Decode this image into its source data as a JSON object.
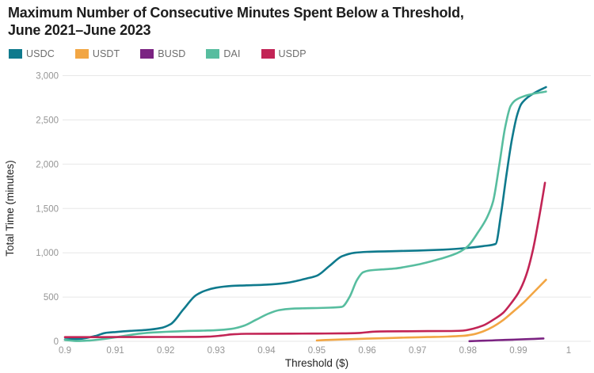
{
  "page": {
    "title_line1": "Maximum Number of Consecutive Minutes Spent Below a Threshold,",
    "title_line2": "June 2021–June 2023"
  },
  "chart_data": {
    "type": "line",
    "title": "Maximum Number of Consecutive Minutes Spent Below a Threshold, June 2021–June 2023",
    "xlabel": "Threshold ($)",
    "ylabel": "Total Time (minutes)",
    "xlim": [
      0.9,
      1.0
    ],
    "ylim": [
      0,
      3000
    ],
    "grid": "horizontal",
    "legend_position": "top-left",
    "x_tick_values": [
      0.9,
      0.91,
      0.92,
      0.93,
      0.94,
      0.95,
      0.96,
      0.97,
      0.98,
      0.99,
      1
    ],
    "x_ticks": [
      "0.9",
      "0.91",
      "0.92",
      "0.93",
      "0.94",
      "0.95",
      "0.96",
      "0.97",
      "0.98",
      "0.99",
      "1"
    ],
    "y_tick_values": [
      0,
      500,
      1000,
      1500,
      2000,
      2500,
      3000
    ],
    "y_ticks": [
      "0",
      "500",
      "1,000",
      "1,500",
      "2,000",
      "2,500",
      "3,000"
    ],
    "gridline_color": "#e7e7e7",
    "tick_label_color": "#959595",
    "series": [
      {
        "name": "USDC",
        "color": "#0f7a8d",
        "points": [
          [
            0.9,
            22
          ],
          [
            0.903,
            28
          ],
          [
            0.906,
            60
          ],
          [
            0.908,
            95
          ],
          [
            0.91,
            105
          ],
          [
            0.913,
            118
          ],
          [
            0.916,
            128
          ],
          [
            0.919,
            150
          ],
          [
            0.921,
            195
          ],
          [
            0.9235,
            360
          ],
          [
            0.926,
            520
          ],
          [
            0.928,
            575
          ],
          [
            0.93,
            605
          ],
          [
            0.933,
            625
          ],
          [
            0.936,
            632
          ],
          [
            0.94,
            640
          ],
          [
            0.944,
            660
          ],
          [
            0.948,
            710
          ],
          [
            0.95,
            740
          ],
          [
            0.9525,
            850
          ],
          [
            0.955,
            960
          ],
          [
            0.9575,
            1000
          ],
          [
            0.96,
            1010
          ],
          [
            0.965,
            1018
          ],
          [
            0.97,
            1025
          ],
          [
            0.975,
            1035
          ],
          [
            0.98,
            1055
          ],
          [
            0.983,
            1075
          ],
          [
            0.9855,
            1100
          ],
          [
            0.9866,
            1450
          ],
          [
            0.9877,
            1900
          ],
          [
            0.9888,
            2300
          ],
          [
            0.9898,
            2560
          ],
          [
            0.9906,
            2680
          ],
          [
            0.992,
            2760
          ],
          [
            0.9935,
            2815
          ],
          [
            0.9955,
            2870
          ]
        ]
      },
      {
        "name": "USDT",
        "color": "#f2a644",
        "points": [
          [
            0.95,
            10
          ],
          [
            0.953,
            17
          ],
          [
            0.956,
            23
          ],
          [
            0.96,
            30
          ],
          [
            0.964,
            37
          ],
          [
            0.968,
            43
          ],
          [
            0.972,
            48
          ],
          [
            0.976,
            54
          ],
          [
            0.979,
            62
          ],
          [
            0.981,
            78
          ],
          [
            0.983,
            112
          ],
          [
            0.985,
            165
          ],
          [
            0.987,
            240
          ],
          [
            0.989,
            335
          ],
          [
            0.991,
            435
          ],
          [
            0.993,
            550
          ],
          [
            0.9955,
            695
          ]
        ]
      },
      {
        "name": "BUSD",
        "color": "#7b2382",
        "points": [
          [
            0.9803,
            2
          ],
          [
            0.983,
            7
          ],
          [
            0.986,
            13
          ],
          [
            0.989,
            19
          ],
          [
            0.992,
            25
          ],
          [
            0.995,
            32
          ]
        ]
      },
      {
        "name": "DAI",
        "color": "#57bd9f",
        "points": [
          [
            0.9,
            15
          ],
          [
            0.9025,
            4
          ],
          [
            0.905,
            10
          ],
          [
            0.9075,
            25
          ],
          [
            0.91,
            45
          ],
          [
            0.9125,
            68
          ],
          [
            0.915,
            88
          ],
          [
            0.9175,
            100
          ],
          [
            0.92,
            107
          ],
          [
            0.9225,
            113
          ],
          [
            0.925,
            118
          ],
          [
            0.9275,
            121
          ],
          [
            0.93,
            126
          ],
          [
            0.933,
            140
          ],
          [
            0.9355,
            175
          ],
          [
            0.938,
            245
          ],
          [
            0.9405,
            315
          ],
          [
            0.9425,
            352
          ],
          [
            0.945,
            368
          ],
          [
            0.9475,
            373
          ],
          [
            0.95,
            376
          ],
          [
            0.9525,
            380
          ],
          [
            0.955,
            390
          ],
          [
            0.9565,
            500
          ],
          [
            0.958,
            695
          ],
          [
            0.9592,
            780
          ],
          [
            0.9605,
            800
          ],
          [
            0.963,
            812
          ],
          [
            0.9655,
            822
          ],
          [
            0.968,
            845
          ],
          [
            0.9705,
            872
          ],
          [
            0.973,
            908
          ],
          [
            0.9755,
            948
          ],
          [
            0.978,
            1000
          ],
          [
            0.98,
            1075
          ],
          [
            0.982,
            1230
          ],
          [
            0.9838,
            1400
          ],
          [
            0.985,
            1580
          ],
          [
            0.9862,
            1980
          ],
          [
            0.9874,
            2420
          ],
          [
            0.9885,
            2660
          ],
          [
            0.9895,
            2725
          ],
          [
            0.991,
            2765
          ],
          [
            0.993,
            2795
          ],
          [
            0.9955,
            2820
          ]
        ]
      },
      {
        "name": "USDP",
        "color": "#c22455",
        "points": [
          [
            0.9,
            47
          ],
          [
            0.905,
            47
          ],
          [
            0.91,
            48
          ],
          [
            0.915,
            48
          ],
          [
            0.92,
            49
          ],
          [
            0.925,
            50
          ],
          [
            0.9285,
            53
          ],
          [
            0.931,
            64
          ],
          [
            0.9335,
            80
          ],
          [
            0.936,
            85
          ],
          [
            0.94,
            86
          ],
          [
            0.945,
            87
          ],
          [
            0.95,
            88
          ],
          [
            0.955,
            90
          ],
          [
            0.9585,
            95
          ],
          [
            0.961,
            108
          ],
          [
            0.964,
            113
          ],
          [
            0.968,
            114
          ],
          [
            0.972,
            115
          ],
          [
            0.976,
            116
          ],
          [
            0.979,
            121
          ],
          [
            0.981,
            142
          ],
          [
            0.983,
            178
          ],
          [
            0.985,
            242
          ],
          [
            0.987,
            322
          ],
          [
            0.9885,
            425
          ],
          [
            0.99,
            545
          ],
          [
            0.9915,
            735
          ],
          [
            0.9928,
            1005
          ],
          [
            0.994,
            1355
          ],
          [
            0.9953,
            1790
          ]
        ]
      }
    ]
  }
}
